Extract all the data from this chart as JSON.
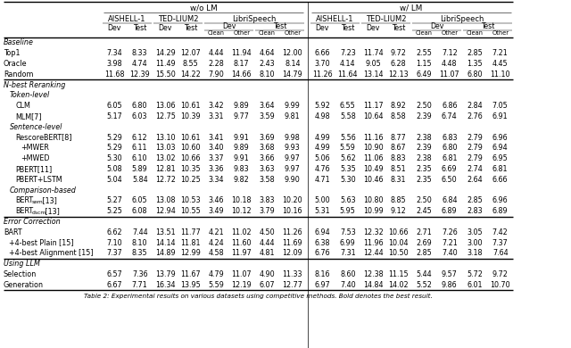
{
  "caption": "Table 2: Experimental results on various datasets using competitive methods. Bold denotes the best result.",
  "wo_lm_label": "w/o LM",
  "w_lm_label": "w/ LM",
  "subgroup_labels": [
    "AISHELL-1",
    "TED-LIUM2",
    "LibriSpeech"
  ],
  "dev_test_labels": [
    "Dev",
    "Test",
    "Dev",
    "Test"
  ],
  "libri_dev_test": [
    "Dev",
    "Test"
  ],
  "clean_other": [
    "Clean",
    "Other",
    "Clean",
    "Other"
  ],
  "sections": [
    {
      "section_label": "Baseline",
      "rows": [
        {
          "label": "Top1",
          "indent": 0,
          "italic_label": false,
          "wo": [
            7.34,
            8.33,
            14.29,
            12.07,
            4.44,
            11.94,
            4.64,
            12.0
          ],
          "w": [
            6.66,
            7.23,
            11.74,
            9.72,
            2.55,
            7.12,
            2.85,
            7.21
          ]
        },
        {
          "label": "Oracle",
          "indent": 0,
          "italic_label": false,
          "wo": [
            3.98,
            4.74,
            11.49,
            8.55,
            2.28,
            8.17,
            2.43,
            8.14
          ],
          "w": [
            3.7,
            4.14,
            9.05,
            6.28,
            1.15,
            4.48,
            1.35,
            4.45
          ]
        },
        {
          "label": "Random",
          "indent": 0,
          "italic_label": false,
          "wo": [
            11.68,
            12.39,
            15.5,
            14.22,
            7.9,
            14.66,
            8.1,
            14.79
          ],
          "w": [
            11.26,
            11.64,
            13.14,
            12.13,
            6.49,
            11.07,
            6.8,
            11.1
          ]
        }
      ]
    },
    {
      "section_label": "N-best Reranking",
      "rows": []
    },
    {
      "section_label": "Token-level",
      "indent": 1,
      "rows": [
        {
          "label": "CLM",
          "indent": 2,
          "italic_label": false,
          "wo": [
            6.05,
            6.8,
            13.06,
            10.61,
            3.42,
            9.89,
            3.64,
            9.99
          ],
          "w": [
            5.92,
            6.55,
            11.17,
            8.92,
            2.5,
            6.86,
            2.84,
            7.05
          ]
        },
        {
          "label": "MLM[7]",
          "indent": 2,
          "italic_label": false,
          "wo": [
            5.17,
            6.03,
            12.75,
            10.39,
            3.31,
            9.77,
            3.59,
            9.81
          ],
          "w": [
            4.98,
            5.58,
            10.64,
            8.58,
            2.39,
            6.74,
            2.76,
            6.91
          ]
        }
      ]
    },
    {
      "section_label": "Sentence-level",
      "indent": 1,
      "rows": [
        {
          "label": "RescoreBERT[8]",
          "indent": 2,
          "italic_label": false,
          "wo": [
            5.29,
            6.12,
            13.1,
            10.61,
            3.41,
            9.91,
            3.69,
            9.98
          ],
          "w": [
            4.99,
            5.56,
            11.16,
            8.77,
            2.38,
            6.83,
            2.79,
            6.96
          ]
        },
        {
          "label": "+MWER",
          "indent": 3,
          "italic_label": false,
          "wo": [
            5.29,
            6.11,
            13.03,
            10.6,
            3.4,
            9.89,
            3.68,
            9.93
          ],
          "w": [
            4.99,
            5.59,
            10.9,
            8.67,
            2.39,
            6.8,
            2.79,
            6.94
          ]
        },
        {
          "label": "+MWED",
          "indent": 3,
          "italic_label": false,
          "wo": [
            5.3,
            6.1,
            13.02,
            10.66,
            3.37,
            9.91,
            3.66,
            9.97
          ],
          "w": [
            5.06,
            5.62,
            11.06,
            8.83,
            2.38,
            6.81,
            2.79,
            6.95
          ]
        },
        {
          "label": "PBERT[11]",
          "indent": 2,
          "italic_label": false,
          "wo": [
            5.08,
            5.89,
            12.81,
            10.35,
            3.36,
            9.83,
            3.63,
            9.97
          ],
          "w": [
            4.76,
            5.35,
            10.49,
            8.51,
            2.35,
            6.69,
            2.74,
            6.81
          ]
        },
        {
          "label": "PBERT+LSTM",
          "indent": 2,
          "italic_label": false,
          "wo": [
            5.04,
            5.84,
            12.72,
            10.25,
            3.34,
            9.82,
            3.58,
            9.9
          ],
          "w": [
            4.71,
            5.3,
            10.46,
            8.31,
            2.35,
            6.5,
            2.64,
            6.66
          ]
        }
      ]
    },
    {
      "section_label": "Comparison-based",
      "indent": 1,
      "rows": [
        {
          "label": "BERT_sem [13]",
          "indent": 2,
          "italic_label": false,
          "bert_sub": "sem",
          "bert_ref": "[13]",
          "wo": [
            5.27,
            6.05,
            13.08,
            10.53,
            3.46,
            10.18,
            3.83,
            10.2
          ],
          "w": [
            5.0,
            5.63,
            10.8,
            8.85,
            2.5,
            6.84,
            2.85,
            6.96
          ]
        },
        {
          "label": "BERT_dscm [13]",
          "indent": 2,
          "italic_label": false,
          "bert_sub": "dscm",
          "bert_ref": "[13]",
          "wo": [
            5.25,
            6.08,
            12.94,
            10.55,
            3.49,
            10.12,
            3.79,
            10.16
          ],
          "w": [
            5.31,
            5.95,
            10.99,
            9.12,
            2.45,
            6.89,
            2.83,
            6.89
          ]
        }
      ]
    },
    {
      "section_label": "Error Correction",
      "rows": [
        {
          "label": "BART",
          "indent": 0,
          "italic_label": false,
          "wo": [
            6.62,
            7.44,
            13.51,
            11.77,
            4.21,
            11.02,
            4.5,
            11.26
          ],
          "w": [
            6.94,
            7.53,
            12.32,
            10.66,
            2.71,
            7.26,
            3.05,
            7.42
          ]
        },
        {
          "label": "+4-best Plain [15]",
          "indent": 1,
          "italic_label": false,
          "wo": [
            7.1,
            8.1,
            14.14,
            11.81,
            4.24,
            11.6,
            4.44,
            11.69
          ],
          "w": [
            6.38,
            6.99,
            11.96,
            10.04,
            2.69,
            7.21,
            3.0,
            7.37
          ]
        },
        {
          "label": "+4-best Alignment [15]",
          "indent": 1,
          "italic_label": false,
          "wo": [
            7.37,
            8.35,
            14.89,
            12.99,
            4.58,
            11.97,
            4.81,
            12.09
          ],
          "w": [
            6.76,
            7.31,
            12.44,
            10.5,
            2.85,
            7.4,
            3.18,
            7.64
          ]
        }
      ]
    },
    {
      "section_label": "Using LLM",
      "rows": [
        {
          "label": "Selection",
          "indent": 0,
          "italic_label": false,
          "wo": [
            6.57,
            7.36,
            13.79,
            11.67,
            4.79,
            11.07,
            4.9,
            11.33
          ],
          "w": [
            8.16,
            8.6,
            12.38,
            11.15,
            5.44,
            9.57,
            5.72,
            9.72
          ]
        },
        {
          "label": "Generation",
          "indent": 0,
          "italic_label": false,
          "wo": [
            6.67,
            7.71,
            16.34,
            13.95,
            5.59,
            12.19,
            6.07,
            12.77
          ],
          "w": [
            6.97,
            7.4,
            14.84,
            14.02,
            5.52,
            9.86,
            6.01,
            10.7
          ]
        }
      ]
    }
  ],
  "bg_color": "#ffffff",
  "text_color": "#000000",
  "fs_data": 5.8,
  "fs_header": 6.0,
  "fs_section": 5.8,
  "fs_caption": 5.2
}
